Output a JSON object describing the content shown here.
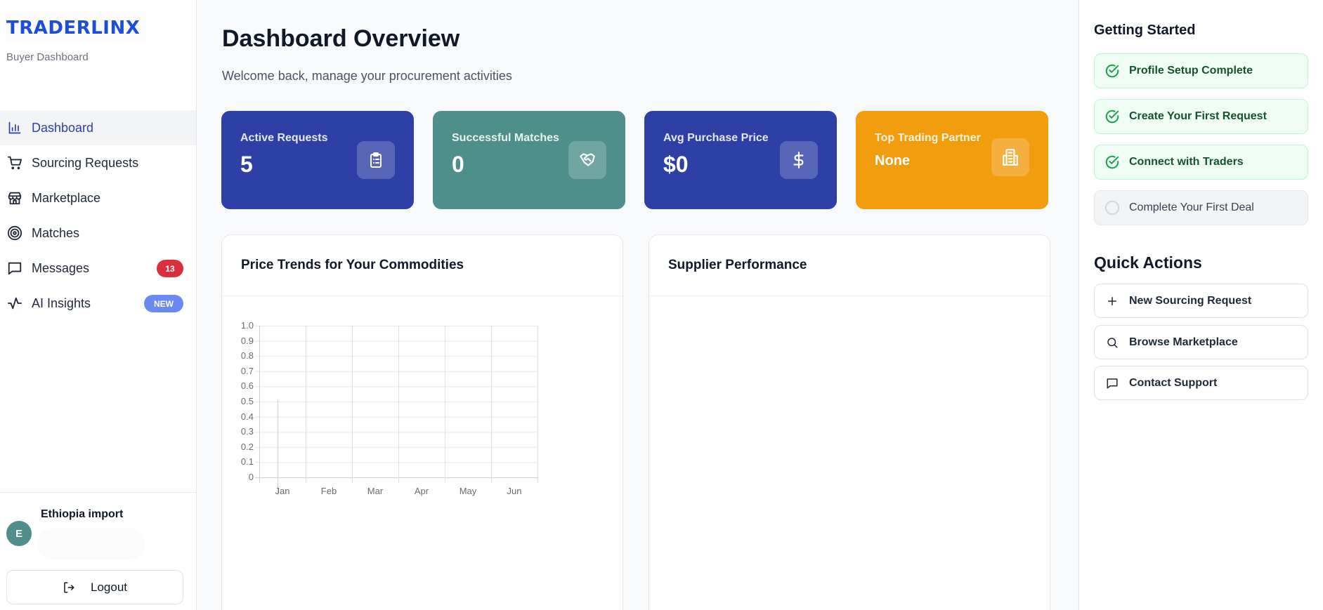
{
  "brand": {
    "logo_text": "TRADERLINX",
    "subtitle": "Buyer Dashboard",
    "accent": "#1d4ed8"
  },
  "sidebar": {
    "items": [
      {
        "label": "Dashboard",
        "icon": "bar-chart-icon",
        "active": true
      },
      {
        "label": "Sourcing Requests",
        "icon": "cart-icon"
      },
      {
        "label": "Marketplace",
        "icon": "store-icon"
      },
      {
        "label": "Matches",
        "icon": "target-icon"
      },
      {
        "label": "Messages",
        "icon": "message-icon",
        "badge": "13",
        "badge_color": "#dc2f3d"
      },
      {
        "label": "AI Insights",
        "icon": "activity-icon",
        "badge": "NEW",
        "badge_color": "#6a8af2"
      }
    ],
    "user": {
      "initial": "E",
      "name": "Ethiopia import"
    },
    "logout_label": "Logout"
  },
  "main": {
    "title": "Dashboard Overview",
    "subtitle": "Welcome back, manage your procurement activities",
    "stats": [
      {
        "label": "Active Requests",
        "value": "5",
        "icon": "clipboard-icon",
        "color": "#2e40a6"
      },
      {
        "label": "Successful Matches",
        "value": "0",
        "icon": "handshake-icon",
        "color": "#4e8f8b"
      },
      {
        "label": "Avg Purchase Price",
        "value": "$0",
        "icon": "dollar-icon",
        "color": "#2e40a6"
      },
      {
        "label": "Top Trading Partner",
        "value": "None",
        "icon": "building-icon",
        "color": "#f29d0e"
      }
    ],
    "cards": [
      {
        "title": "Price Trends for Your Commodities"
      },
      {
        "title": "Supplier Performance"
      }
    ]
  },
  "chart_data": {
    "type": "line",
    "title": "Price Trends for Your Commodities",
    "categories": [
      "Jan",
      "Feb",
      "Mar",
      "Apr",
      "May",
      "Jun"
    ],
    "series": [],
    "y_ticks": [
      "1.0",
      "0.9",
      "0.8",
      "0.7",
      "0.6",
      "0.5",
      "0.4",
      "0.3",
      "0.2",
      "0.1",
      "0"
    ],
    "xlabel": "",
    "ylabel": "",
    "ylim": [
      0,
      1.0
    ],
    "grid": true,
    "legend": "none"
  },
  "right_panel": {
    "getting_started_title": "Getting Started",
    "steps": [
      {
        "label": "Profile Setup Complete",
        "done": true
      },
      {
        "label": "Create Your First Request",
        "done": true
      },
      {
        "label": "Connect with Traders",
        "done": true
      },
      {
        "label": "Complete Your First Deal",
        "done": false
      }
    ],
    "quick_actions_title": "Quick Actions",
    "quick_actions": [
      {
        "label": "New Sourcing Request",
        "icon": "plus-icon"
      },
      {
        "label": "Browse Marketplace",
        "icon": "search-icon"
      },
      {
        "label": "Contact Support",
        "icon": "message-icon"
      }
    ]
  }
}
